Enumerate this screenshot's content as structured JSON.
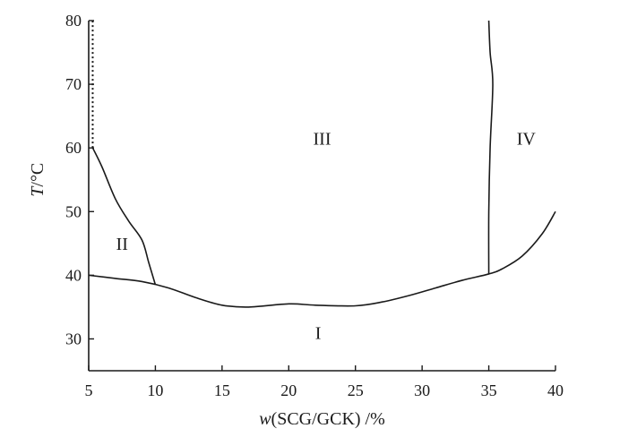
{
  "chart_data": {
    "type": "line",
    "title": "",
    "xlabel": {
      "italic": "w",
      "rest": "(SCG/GCK) /%"
    },
    "ylabel": {
      "italic": "T",
      "rest": "/°C"
    },
    "xlim": [
      5,
      40
    ],
    "ylim": [
      25,
      80
    ],
    "xticks": [
      5,
      10,
      15,
      20,
      25,
      30,
      35,
      40
    ],
    "yticks": [
      30,
      40,
      50,
      60,
      70,
      80
    ],
    "grid": false,
    "series": [
      {
        "style": "solid",
        "points": [
          [
            5,
            40
          ],
          [
            7,
            39.5
          ],
          [
            9,
            39
          ],
          [
            11,
            38
          ],
          [
            13,
            36.5
          ],
          [
            15,
            35.3
          ],
          [
            17,
            35
          ],
          [
            20,
            35.5
          ],
          [
            22,
            35.3
          ],
          [
            25,
            35.2
          ],
          [
            27,
            35.8
          ],
          [
            29,
            36.8
          ],
          [
            31,
            38
          ],
          [
            33,
            39.2
          ],
          [
            35,
            40.2
          ],
          [
            36,
            41
          ],
          [
            37.5,
            43
          ],
          [
            39,
            46.5
          ],
          [
            40,
            50
          ]
        ]
      },
      {
        "style": "solid",
        "points": [
          [
            5.3,
            60
          ],
          [
            6,
            57
          ],
          [
            7,
            52
          ],
          [
            8,
            48.5
          ],
          [
            9,
            45.5
          ],
          [
            9.5,
            42
          ],
          [
            10,
            38.5
          ]
        ]
      },
      {
        "style": "dotted",
        "points": [
          [
            5.3,
            60
          ],
          [
            5.3,
            80
          ]
        ]
      },
      {
        "style": "solid",
        "points": [
          [
            35,
            40.2
          ],
          [
            35,
            50
          ],
          [
            35.1,
            60
          ],
          [
            35.3,
            70
          ],
          [
            35.1,
            75
          ],
          [
            35,
            80
          ]
        ]
      }
    ],
    "regions": [
      {
        "label": "I",
        "x": 22.2,
        "y": 30
      },
      {
        "label": "II",
        "x": 7.5,
        "y": 44
      },
      {
        "label": "III",
        "x": 22.5,
        "y": 60.5
      },
      {
        "label": "IV",
        "x": 37.8,
        "y": 60.5
      }
    ]
  }
}
